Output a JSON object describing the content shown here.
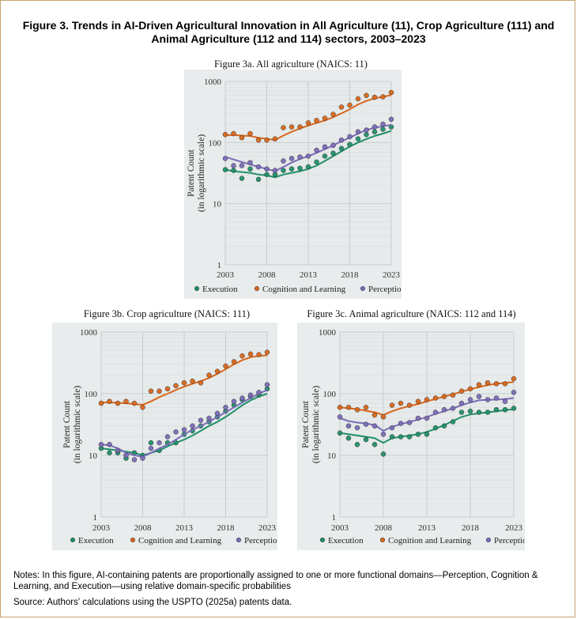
{
  "figure_title": "Figure 3. Trends in AI-Driven Agricultural Innovation in All Agriculture (11), Crop Agriculture (111) and Animal Agriculture (112 and 114) sectors, 2003–2023",
  "notes": "Notes: In this figure, AI-containing patents are proportionally assigned to one or more functional domains—Perception, Cognition & Learning, and Execution—using relative domain-specific probabilities",
  "source": "Source: Authors' calculations using the USPTO (2025a) patents data.",
  "colors": {
    "execution": "#1f8f6a",
    "cognition": "#d9661a",
    "perception": "#7b6bb8",
    "panel_bg": "#e9ecec"
  },
  "chart_data": [
    {
      "id": "3a",
      "type": "scatter",
      "title": "Figure 3a. All agriculture (NAICS: 11)",
      "ylabel": [
        "Patent Count",
        "(in logarithmic scale)"
      ],
      "yscale": "log",
      "ylim": [
        1,
        1000
      ],
      "yticks": [
        "1",
        "10",
        "100",
        "1000"
      ],
      "xticks": [
        "2003",
        "2008",
        "2013",
        "2018",
        "2023"
      ],
      "xlim": [
        2003,
        2023
      ],
      "x": [
        2003,
        2004,
        2005,
        2006,
        2007,
        2008,
        2009,
        2010,
        2011,
        2012,
        2013,
        2014,
        2015,
        2016,
        2017,
        2018,
        2019,
        2020,
        2021,
        2022,
        2023
      ],
      "legend": [
        "Execution",
        "Cognition and Learning",
        "Perception"
      ],
      "series": [
        {
          "name": "Execution",
          "color_key": "execution",
          "points": [
            36,
            35,
            26,
            37,
            25,
            30,
            30,
            35,
            37,
            38,
            40,
            48,
            60,
            67,
            80,
            93,
            115,
            135,
            150,
            165,
            180
          ],
          "trend": [
            36,
            34,
            33,
            32,
            30,
            29,
            27,
            30,
            32,
            34,
            37,
            42,
            50,
            60,
            72,
            86,
            100,
            114,
            128,
            140,
            155
          ]
        },
        {
          "name": "Cognition and Learning",
          "color_key": "cognition",
          "points": [
            135,
            140,
            120,
            140,
            110,
            110,
            115,
            175,
            180,
            180,
            210,
            230,
            250,
            290,
            380,
            410,
            520,
            590,
            550,
            560,
            660
          ],
          "trend": [
            132,
            133,
            130,
            128,
            120,
            115,
            110,
            130,
            150,
            170,
            190,
            210,
            230,
            260,
            300,
            350,
            420,
            480,
            530,
            560,
            600
          ]
        },
        {
          "name": "Perception",
          "color_key": "perception",
          "points": [
            55,
            42,
            42,
            47,
            40,
            37,
            35,
            50,
            55,
            58,
            60,
            75,
            85,
            90,
            110,
            125,
            150,
            160,
            180,
            200,
            240
          ],
          "trend": [
            58,
            53,
            48,
            44,
            40,
            37,
            34,
            40,
            47,
            54,
            60,
            68,
            78,
            90,
            105,
            120,
            140,
            160,
            175,
            185,
            195
          ]
        }
      ]
    },
    {
      "id": "3b",
      "type": "scatter",
      "title": "Figure 3b. Crop agriculture (NAICS: 111)",
      "ylabel": [
        "Patent Count",
        "(in logarithmic scale)"
      ],
      "yscale": "log",
      "ylim": [
        1,
        1000
      ],
      "yticks": [
        "1",
        "10",
        "100",
        "1000"
      ],
      "xticks": [
        "2003",
        "2008",
        "2013",
        "2018",
        "2023"
      ],
      "xlim": [
        2003,
        2023
      ],
      "x": [
        2003,
        2004,
        2005,
        2006,
        2007,
        2008,
        2009,
        2010,
        2011,
        2012,
        2013,
        2014,
        2015,
        2016,
        2017,
        2018,
        2019,
        2020,
        2021,
        2022,
        2023
      ],
      "legend": [
        "Execution",
        "Cognition and Learning",
        "Perception"
      ],
      "series": [
        {
          "name": "Execution",
          "color_key": "execution",
          "points": [
            13,
            11,
            11,
            9,
            11,
            10,
            16,
            12,
            16,
            16,
            22,
            25,
            30,
            35,
            42,
            52,
            65,
            80,
            90,
            95,
            120
          ],
          "trend": [
            13,
            12.5,
            12,
            11.5,
            11,
            10,
            11,
            12,
            14,
            16,
            18,
            21,
            25,
            30,
            35,
            42,
            52,
            65,
            78,
            90,
            100
          ]
        },
        {
          "name": "Cognition and Learning",
          "color_key": "cognition",
          "points": [
            70,
            75,
            70,
            75,
            70,
            60,
            110,
            110,
            120,
            135,
            150,
            160,
            150,
            200,
            230,
            280,
            330,
            410,
            440,
            430,
            470
          ],
          "trend": [
            72,
            72,
            71,
            70,
            68,
            66,
            75,
            88,
            100,
            115,
            130,
            145,
            160,
            180,
            210,
            250,
            300,
            350,
            390,
            410,
            420
          ]
        },
        {
          "name": "Perception",
          "color_key": "perception",
          "points": [
            15,
            15,
            12,
            10,
            8.5,
            9,
            13,
            16,
            20,
            24,
            26,
            30,
            37,
            40,
            48,
            60,
            75,
            85,
            95,
            105,
            140
          ],
          "trend": [
            15,
            14.5,
            13,
            11,
            10,
            9.5,
            11,
            13,
            15,
            18,
            22,
            26,
            30,
            35,
            42,
            50,
            60,
            72,
            85,
            100,
            115
          ]
        }
      ]
    },
    {
      "id": "3c",
      "type": "scatter",
      "title": "Figure 3c. Animal agriculture (NAICS: 112 and 114)",
      "ylabel": [
        "Patent Count",
        "(in logarithmic scale)"
      ],
      "yscale": "log",
      "ylim": [
        1,
        1000
      ],
      "yticks": [
        "1",
        "10",
        "100",
        "1000"
      ],
      "xticks": [
        "2003",
        "2008",
        "2013",
        "2018",
        "2023"
      ],
      "xlim": [
        2003,
        2023
      ],
      "x": [
        2003,
        2004,
        2005,
        2006,
        2007,
        2008,
        2009,
        2010,
        2011,
        2012,
        2013,
        2014,
        2015,
        2016,
        2017,
        2018,
        2019,
        2020,
        2021,
        2022,
        2023
      ],
      "legend": [
        "Execution",
        "Cognition and Learning",
        "Perception"
      ],
      "series": [
        {
          "name": "Execution",
          "color_key": "execution",
          "points": [
            23,
            19,
            15,
            18,
            15,
            10.5,
            20,
            20,
            20,
            22,
            22,
            28,
            30,
            35,
            50,
            52,
            50,
            50,
            55,
            55,
            58
          ],
          "trend": [
            23,
            22,
            21,
            20,
            19,
            16,
            19,
            20,
            21,
            22,
            24,
            27,
            31,
            36,
            42,
            46,
            48,
            50,
            52,
            54,
            56
          ]
        },
        {
          "name": "Cognition and Learning",
          "color_key": "cognition",
          "points": [
            60,
            60,
            55,
            60,
            45,
            42,
            65,
            70,
            65,
            75,
            80,
            85,
            90,
            95,
            110,
            120,
            140,
            150,
            145,
            145,
            175
          ],
          "trend": [
            60,
            58,
            56,
            53,
            50,
            45,
            52,
            58,
            63,
            68,
            75,
            82,
            90,
            98,
            108,
            118,
            128,
            138,
            145,
            150,
            155
          ]
        },
        {
          "name": "Perception",
          "color_key": "perception",
          "points": [
            42,
            30,
            28,
            32,
            30,
            22,
            28,
            33,
            34,
            40,
            40,
            50,
            55,
            58,
            70,
            80,
            90,
            80,
            85,
            75,
            105
          ],
          "trend": [
            40,
            36,
            34,
            33,
            31,
            25,
            29,
            32,
            35,
            38,
            42,
            47,
            52,
            58,
            65,
            72,
            78,
            80,
            80,
            82,
            85
          ]
        }
      ]
    }
  ]
}
